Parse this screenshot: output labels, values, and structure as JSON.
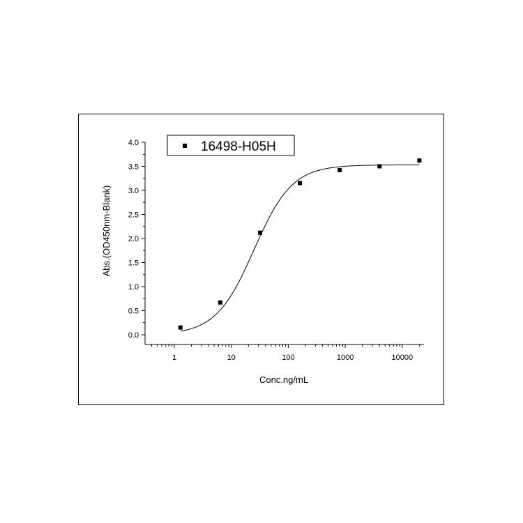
{
  "chart_data": {
    "type": "scatter",
    "x_scale": "log",
    "xlabel": "Conc.ng/mL",
    "ylabel": "Abs.(OD450nm-Blank)",
    "xlim": [
      0.3,
      20000
    ],
    "ylim": [
      -0.2,
      4.0
    ],
    "x_ticks": [
      1,
      10,
      100,
      1000,
      10000
    ],
    "x_tick_labels": [
      "1",
      "10",
      "100",
      "1000",
      "10000"
    ],
    "y_ticks": [
      0.0,
      0.5,
      1.0,
      1.5,
      2.0,
      2.5,
      3.0,
      3.5,
      4.0
    ],
    "y_tick_labels": [
      "0.0",
      "0.5",
      "1.0",
      "1.5",
      "2.0",
      "2.5",
      "3.0",
      "3.5",
      "4.0"
    ],
    "grid": false,
    "legend": "top-left",
    "series": [
      {
        "name": "16498-H05H",
        "marker": "square",
        "x": [
          1.28,
          6.4,
          32,
          160,
          800,
          4000,
          20000
        ],
        "y": [
          0.15,
          0.67,
          2.12,
          3.15,
          3.42,
          3.5,
          3.62
        ]
      }
    ],
    "fit_curve": {
      "type": "4PL",
      "bottom": 0.0,
      "top": 3.53,
      "ec50": 25,
      "hill": 1.3
    },
    "colors": {
      "marker": "#000000",
      "line": "#000000"
    }
  }
}
